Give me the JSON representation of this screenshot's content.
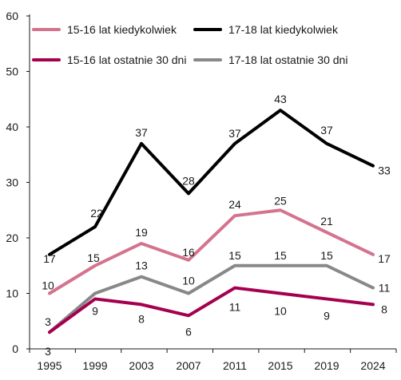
{
  "chart_data": {
    "type": "line",
    "title": "",
    "xlabel": "",
    "ylabel": "",
    "ylim": [
      0,
      60
    ],
    "yticks": [
      0,
      10,
      20,
      30,
      40,
      50,
      60
    ],
    "grid": false,
    "legend_position": "top",
    "categories": [
      "1995",
      "1999",
      "2003",
      "2007",
      "2011",
      "2015",
      "2019",
      "2024"
    ],
    "series": [
      {
        "name": "15-16 lat kiedykolwiek",
        "color": "#d4738e",
        "values": [
          10,
          15,
          19,
          16,
          24,
          25,
          21,
          17
        ]
      },
      {
        "name": "17-18 lat kiedykolwiek",
        "color": "#000000",
        "values": [
          17,
          22,
          37,
          28,
          37,
          43,
          37,
          33
        ]
      },
      {
        "name": "15-16 lat ostatnie 30 dni",
        "color": "#a5004f",
        "values": [
          3,
          9,
          8,
          6,
          11,
          10,
          9,
          8
        ]
      },
      {
        "name": "17-18 lat ostatnie 30 dni",
        "color": "#888888",
        "values": [
          3,
          10,
          13,
          10,
          15,
          15,
          15,
          11
        ]
      }
    ]
  }
}
